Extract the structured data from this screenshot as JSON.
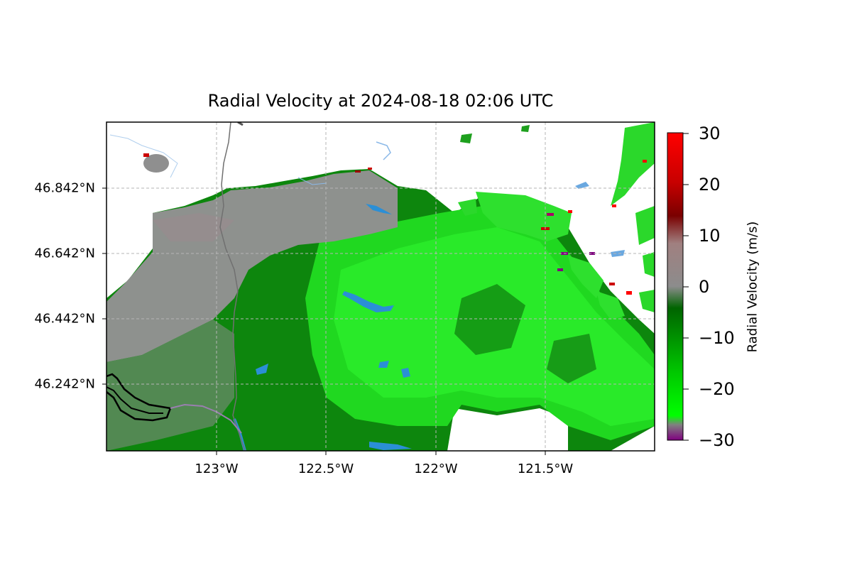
{
  "title": "Radial Velocity at 2024-08-18 02:06 UTC",
  "map": {
    "type": "radar-velocity-map",
    "projection": "PlateCarree",
    "lat_ticks": [
      "46.842°N",
      "46.642°N",
      "46.442°N",
      "46.242°N"
    ],
    "lon_ticks": [
      "123°W",
      "122.5°W",
      "122°W",
      "121.5°W"
    ],
    "gridlines": "dashed-gray",
    "features": [
      "rivers",
      "lakes",
      "state-boundary",
      "coastline"
    ]
  },
  "colorbar": {
    "label": "Radial Velocity (m/s)",
    "ticks": [
      "30",
      "20",
      "10",
      "0",
      "−10",
      "−20",
      "−30"
    ],
    "vmin": -30,
    "vmax": 30,
    "colors": {
      "top": "#ff0000",
      "upper": "#8b0000",
      "mid_high": "#8a6e6e",
      "mid": "#8a8a8a",
      "lower": "#006400",
      "low": "#00ff00",
      "bottom": "#800080"
    }
  },
  "colors": {
    "gray_zone": "#8f8f8f",
    "dark_green": "#0b7a0b",
    "mid_green": "#1fa81f",
    "bright_green": "#22ee22",
    "water": "#2b8fd6",
    "boundary": "#777777"
  }
}
